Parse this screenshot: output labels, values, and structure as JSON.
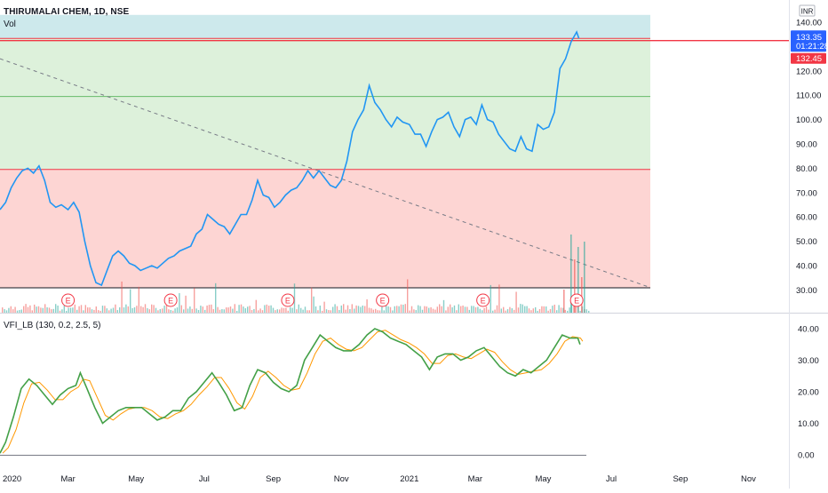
{
  "header": {
    "symbol_title": "THIRUMALAI CHEM, 1D, NSE",
    "volume_label": "Vol",
    "currency": "INR"
  },
  "price_scale": {
    "ticks": [
      "140.00",
      "130.00",
      "120.00",
      "110.00",
      "100.00",
      "90.00",
      "80.00",
      "70.00",
      "60.00",
      "50.00",
      "40.00",
      "30.00"
    ],
    "current_price": "133.35",
    "countdown": "01:21:28",
    "line_price": "132.45",
    "current_color": "#2962ff",
    "line_color": "#f23645"
  },
  "indicator": {
    "label": "VFI_LB (130, 0.2, 2.5, 5)",
    "ticks": [
      "40.00",
      "30.00",
      "20.00",
      "10.00",
      "0.00"
    ]
  },
  "time_axis": {
    "labels": [
      "2020",
      "Mar",
      "May",
      "Jul",
      "Sep",
      "Nov",
      "2021",
      "Mar",
      "May",
      "Jul",
      "Sep",
      "Nov"
    ]
  },
  "events": {
    "marker_label": "E",
    "count": 6
  },
  "colors": {
    "price_line": "#2196f3",
    "vfi_line": "#43a047",
    "vfi_signal": "#ff9800",
    "zone_top": "#cde9ec",
    "zone_mid": "#ddf1db",
    "zone_low": "#fdd5d3",
    "volume_up": "#26a69a",
    "volume_down": "#ef5350"
  },
  "chart_data": {
    "type": "line",
    "series": [],
    "price_zones": [
      {
        "from": 133.35,
        "to": 143
      },
      {
        "from": 79.5,
        "to": 133.35
      },
      {
        "from": 30.9,
        "to": 79.5
      }
    ],
    "horizontal_levels": [
      133.35,
      132.45,
      109.5,
      79.5,
      30.9
    ],
    "trendline": {
      "from": [
        "2019-12-31",
        125
      ],
      "to": [
        "2021-08-05",
        31
      ]
    },
    "price": [
      [
        "2019-12-31",
        63
      ],
      [
        "2020-01-05",
        66
      ],
      [
        "2020-01-10",
        72
      ],
      [
        "2020-01-15",
        76
      ],
      [
        "2020-01-20",
        79
      ],
      [
        "2020-01-25",
        80
      ],
      [
        "2020-01-30",
        78
      ],
      [
        "2020-02-04",
        81
      ],
      [
        "2020-02-09",
        75
      ],
      [
        "2020-02-14",
        66
      ],
      [
        "2020-02-19",
        64
      ],
      [
        "2020-02-24",
        65
      ],
      [
        "2020-03-01",
        63
      ],
      [
        "2020-03-06",
        66
      ],
      [
        "2020-03-11",
        62
      ],
      [
        "2020-03-16",
        50
      ],
      [
        "2020-03-21",
        40
      ],
      [
        "2020-03-26",
        33
      ],
      [
        "2020-03-31",
        32
      ],
      [
        "2020-04-05",
        38
      ],
      [
        "2020-04-10",
        44
      ],
      [
        "2020-04-15",
        46
      ],
      [
        "2020-04-20",
        44
      ],
      [
        "2020-04-25",
        41
      ],
      [
        "2020-04-30",
        40
      ],
      [
        "2020-05-05",
        38
      ],
      [
        "2020-05-10",
        39
      ],
      [
        "2020-05-15",
        40
      ],
      [
        "2020-05-20",
        39
      ],
      [
        "2020-05-25",
        41
      ],
      [
        "2020-05-30",
        43
      ],
      [
        "2020-06-04",
        44
      ],
      [
        "2020-06-09",
        46
      ],
      [
        "2020-06-14",
        47
      ],
      [
        "2020-06-19",
        48
      ],
      [
        "2020-06-24",
        53
      ],
      [
        "2020-06-29",
        55
      ],
      [
        "2020-07-04",
        61
      ],
      [
        "2020-07-09",
        59
      ],
      [
        "2020-07-14",
        57
      ],
      [
        "2020-07-19",
        56
      ],
      [
        "2020-07-24",
        53
      ],
      [
        "2020-07-29",
        57
      ],
      [
        "2020-08-03",
        61
      ],
      [
        "2020-08-08",
        61
      ],
      [
        "2020-08-13",
        67
      ],
      [
        "2020-08-18",
        75
      ],
      [
        "2020-08-23",
        69
      ],
      [
        "2020-08-28",
        68
      ],
      [
        "2020-09-02",
        64
      ],
      [
        "2020-09-07",
        66
      ],
      [
        "2020-09-12",
        69
      ],
      [
        "2020-09-17",
        71
      ],
      [
        "2020-09-22",
        72
      ],
      [
        "2020-09-27",
        75
      ],
      [
        "2020-10-02",
        79
      ],
      [
        "2020-10-07",
        76
      ],
      [
        "2020-10-12",
        79
      ],
      [
        "2020-10-17",
        76
      ],
      [
        "2020-10-22",
        73
      ],
      [
        "2020-10-27",
        72
      ],
      [
        "2020-11-01",
        75
      ],
      [
        "2020-11-06",
        83
      ],
      [
        "2020-11-11",
        95
      ],
      [
        "2020-11-16",
        100
      ],
      [
        "2020-11-21",
        104
      ],
      [
        "2020-11-26",
        114
      ],
      [
        "2020-12-01",
        107
      ],
      [
        "2020-12-06",
        104
      ],
      [
        "2020-12-11",
        100
      ],
      [
        "2020-12-16",
        97
      ],
      [
        "2020-12-21",
        101
      ],
      [
        "2020-12-26",
        99
      ],
      [
        "2021-01-01",
        98
      ],
      [
        "2021-01-06",
        94
      ],
      [
        "2021-01-11",
        94
      ],
      [
        "2021-01-16",
        89
      ],
      [
        "2021-01-21",
        95
      ],
      [
        "2021-01-26",
        100
      ],
      [
        "2021-01-31",
        101
      ],
      [
        "2021-02-05",
        103
      ],
      [
        "2021-02-10",
        97
      ],
      [
        "2021-02-15",
        93
      ],
      [
        "2021-02-20",
        100
      ],
      [
        "2021-02-25",
        101
      ],
      [
        "2021-03-02",
        98
      ],
      [
        "2021-03-07",
        106
      ],
      [
        "2021-03-12",
        100
      ],
      [
        "2021-03-17",
        99
      ],
      [
        "2021-03-22",
        94
      ],
      [
        "2021-03-27",
        91
      ],
      [
        "2021-04-01",
        88
      ],
      [
        "2021-04-06",
        87
      ],
      [
        "2021-04-11",
        93
      ],
      [
        "2021-04-16",
        88
      ],
      [
        "2021-04-21",
        87
      ],
      [
        "2021-04-26",
        98
      ],
      [
        "2021-05-01",
        96
      ],
      [
        "2021-05-06",
        97
      ],
      [
        "2021-05-11",
        103
      ],
      [
        "2021-05-16",
        121
      ],
      [
        "2021-05-21",
        125
      ],
      [
        "2021-05-26",
        132
      ],
      [
        "2021-05-31",
        136
      ],
      [
        "2021-06-02",
        133.35
      ]
    ],
    "vfi": [
      [
        "2019-12-31",
        0.5
      ],
      [
        "2020-01-05",
        4
      ],
      [
        "2020-01-12",
        12
      ],
      [
        "2020-01-19",
        21
      ],
      [
        "2020-01-26",
        24
      ],
      [
        "2020-02-02",
        22
      ],
      [
        "2020-02-09",
        19
      ],
      [
        "2020-02-16",
        16
      ],
      [
        "2020-02-23",
        19
      ],
      [
        "2020-03-01",
        21
      ],
      [
        "2020-03-08",
        22
      ],
      [
        "2020-03-12",
        26
      ],
      [
        "2020-03-18",
        21
      ],
      [
        "2020-03-25",
        15
      ],
      [
        "2020-04-01",
        10
      ],
      [
        "2020-04-08",
        12
      ],
      [
        "2020-04-15",
        14
      ],
      [
        "2020-04-22",
        15
      ],
      [
        "2020-04-29",
        15
      ],
      [
        "2020-05-06",
        15
      ],
      [
        "2020-05-13",
        13
      ],
      [
        "2020-05-20",
        11
      ],
      [
        "2020-05-27",
        12
      ],
      [
        "2020-06-03",
        14
      ],
      [
        "2020-06-10",
        14
      ],
      [
        "2020-06-17",
        18
      ],
      [
        "2020-06-24",
        20
      ],
      [
        "2020-07-01",
        23
      ],
      [
        "2020-07-08",
        26
      ],
      [
        "2020-07-14",
        23
      ],
      [
        "2020-07-21",
        19
      ],
      [
        "2020-07-28",
        14
      ],
      [
        "2020-08-04",
        15
      ],
      [
        "2020-08-11",
        22
      ],
      [
        "2020-08-18",
        27
      ],
      [
        "2020-08-25",
        26
      ],
      [
        "2020-09-01",
        23
      ],
      [
        "2020-09-08",
        21
      ],
      [
        "2020-09-15",
        20
      ],
      [
        "2020-09-22",
        22
      ],
      [
        "2020-09-29",
        30
      ],
      [
        "2020-10-06",
        34
      ],
      [
        "2020-10-13",
        38
      ],
      [
        "2020-10-20",
        36
      ],
      [
        "2020-10-27",
        34
      ],
      [
        "2020-11-03",
        33
      ],
      [
        "2020-11-10",
        33
      ],
      [
        "2020-11-17",
        35
      ],
      [
        "2020-11-24",
        38
      ],
      [
        "2020-12-01",
        40
      ],
      [
        "2020-12-08",
        39
      ],
      [
        "2020-12-15",
        37
      ],
      [
        "2020-12-22",
        36
      ],
      [
        "2020-12-29",
        35
      ],
      [
        "2021-01-05",
        33
      ],
      [
        "2021-01-12",
        31
      ],
      [
        "2021-01-19",
        27
      ],
      [
        "2021-01-26",
        31
      ],
      [
        "2021-02-02",
        32
      ],
      [
        "2021-02-09",
        32
      ],
      [
        "2021-02-16",
        30
      ],
      [
        "2021-02-23",
        31
      ],
      [
        "2021-03-02",
        33
      ],
      [
        "2021-03-09",
        34
      ],
      [
        "2021-03-16",
        31
      ],
      [
        "2021-03-23",
        28
      ],
      [
        "2021-03-30",
        26
      ],
      [
        "2021-04-06",
        25
      ],
      [
        "2021-04-13",
        27
      ],
      [
        "2021-04-20",
        26
      ],
      [
        "2021-04-27",
        28
      ],
      [
        "2021-05-04",
        30
      ],
      [
        "2021-05-11",
        34
      ],
      [
        "2021-05-18",
        38
      ],
      [
        "2021-05-25",
        37
      ],
      [
        "2021-06-01",
        37
      ],
      [
        "2021-06-03",
        35
      ]
    ]
  }
}
